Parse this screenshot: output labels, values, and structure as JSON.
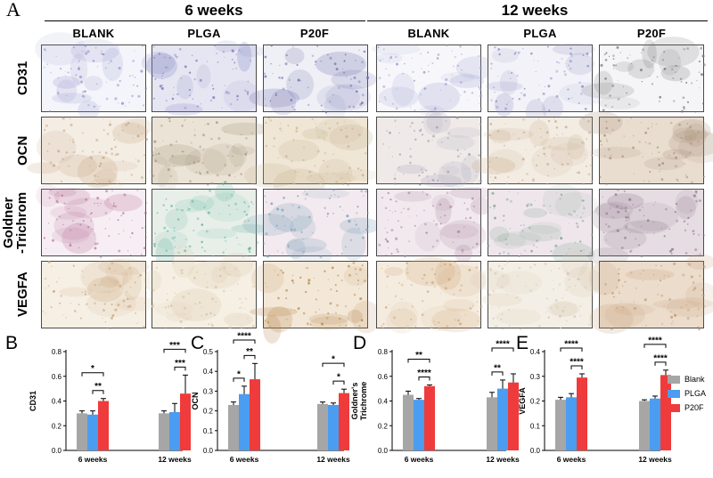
{
  "figure": {
    "panel_a_letter": "A",
    "groups": [
      "6 weeks",
      "12 weeks"
    ],
    "columns": [
      "BLANK",
      "PLGA",
      "P20F",
      "BLANK",
      "PLGA",
      "P20F"
    ],
    "rows": [
      "CD31",
      "OCN",
      "Goldner\n-Trichrom",
      "VEGFA"
    ]
  },
  "legend": [
    {
      "name": "Blank",
      "color": "#a6a6a6"
    },
    {
      "name": "PLGA",
      "color": "#4a9df0"
    },
    {
      "name": "P20F",
      "color": "#ef3b3b"
    }
  ],
  "chart_data": [
    {
      "type": "bar",
      "panel": "B",
      "ylabel": "CD31",
      "categories": [
        "6 weeks",
        "12 weeks"
      ],
      "ylim": [
        0,
        0.8
      ],
      "yticks": [
        0.0,
        0.2,
        0.4,
        0.6,
        0.8
      ],
      "series": [
        {
          "name": "Blank",
          "values": [
            0.3,
            0.3
          ],
          "errors": [
            0.02,
            0.02
          ]
        },
        {
          "name": "PLGA",
          "values": [
            0.29,
            0.31
          ],
          "errors": [
            0.03,
            0.07
          ]
        },
        {
          "name": "P20F",
          "values": [
            0.4,
            0.46
          ],
          "errors": [
            0.02,
            0.15
          ]
        }
      ],
      "significance": [
        {
          "group": 0,
          "from": 0,
          "to": 2,
          "label": "*"
        },
        {
          "group": 0,
          "from": 1,
          "to": 2,
          "label": "**"
        },
        {
          "group": 1,
          "from": 0,
          "to": 2,
          "label": "***"
        },
        {
          "group": 1,
          "from": 1,
          "to": 2,
          "label": "***"
        }
      ]
    },
    {
      "type": "bar",
      "panel": "C",
      "ylabel": "OCN",
      "categories": [
        "6 weeks",
        "12 weeks"
      ],
      "ylim": [
        0,
        0.5
      ],
      "yticks": [
        0.0,
        0.1,
        0.2,
        0.3,
        0.4,
        0.5
      ],
      "series": [
        {
          "name": "Blank",
          "values": [
            0.23,
            0.235
          ],
          "errors": [
            0.015,
            0.01
          ]
        },
        {
          "name": "PLGA",
          "values": [
            0.285,
            0.23
          ],
          "errors": [
            0.04,
            0.01
          ]
        },
        {
          "name": "P20F",
          "values": [
            0.36,
            0.29
          ],
          "errors": [
            0.08,
            0.02
          ]
        }
      ],
      "significance": [
        {
          "group": 0,
          "from": 0,
          "to": 2,
          "label": "****"
        },
        {
          "group": 0,
          "from": 0,
          "to": 1,
          "label": "*"
        },
        {
          "group": 0,
          "from": 1,
          "to": 2,
          "label": "**"
        },
        {
          "group": 1,
          "from": 0,
          "to": 2,
          "label": "*"
        },
        {
          "group": 1,
          "from": 1,
          "to": 2,
          "label": "*"
        }
      ]
    },
    {
      "type": "bar",
      "panel": "D",
      "ylabel": "Goldner's\nTrichrome",
      "categories": [
        "6 weeks",
        "12 weeks"
      ],
      "ylim": [
        0,
        0.8
      ],
      "yticks": [
        0.0,
        0.2,
        0.4,
        0.6,
        0.8
      ],
      "series": [
        {
          "name": "Blank",
          "values": [
            0.45,
            0.43
          ],
          "errors": [
            0.03,
            0.04
          ]
        },
        {
          "name": "PLGA",
          "values": [
            0.41,
            0.5
          ],
          "errors": [
            0.01,
            0.07
          ]
        },
        {
          "name": "P20F",
          "values": [
            0.52,
            0.55
          ],
          "errors": [
            0.01,
            0.07
          ]
        }
      ],
      "significance": [
        {
          "group": 0,
          "from": 0,
          "to": 2,
          "label": "**"
        },
        {
          "group": 0,
          "from": 1,
          "to": 2,
          "label": "****"
        },
        {
          "group": 1,
          "from": 0,
          "to": 2,
          "label": "****"
        },
        {
          "group": 1,
          "from": 0,
          "to": 1,
          "label": "**"
        }
      ]
    },
    {
      "type": "bar",
      "panel": "E",
      "ylabel": "VEGFA",
      "categories": [
        "6 weeks",
        "12 weeks"
      ],
      "ylim": [
        0,
        0.4
      ],
      "yticks": [
        0.0,
        0.1,
        0.2,
        0.3,
        0.4
      ],
      "series": [
        {
          "name": "Blank",
          "values": [
            0.205,
            0.2
          ],
          "errors": [
            0.01,
            0.005
          ]
        },
        {
          "name": "PLGA",
          "values": [
            0.215,
            0.21
          ],
          "errors": [
            0.015,
            0.01
          ]
        },
        {
          "name": "P20F",
          "values": [
            0.295,
            0.305
          ],
          "errors": [
            0.015,
            0.02
          ]
        }
      ],
      "significance": [
        {
          "group": 0,
          "from": 0,
          "to": 2,
          "label": "****"
        },
        {
          "group": 0,
          "from": 1,
          "to": 2,
          "label": "****"
        },
        {
          "group": 1,
          "from": 0,
          "to": 2,
          "label": "****"
        },
        {
          "group": 1,
          "from": 1,
          "to": 2,
          "label": "****"
        }
      ]
    }
  ]
}
